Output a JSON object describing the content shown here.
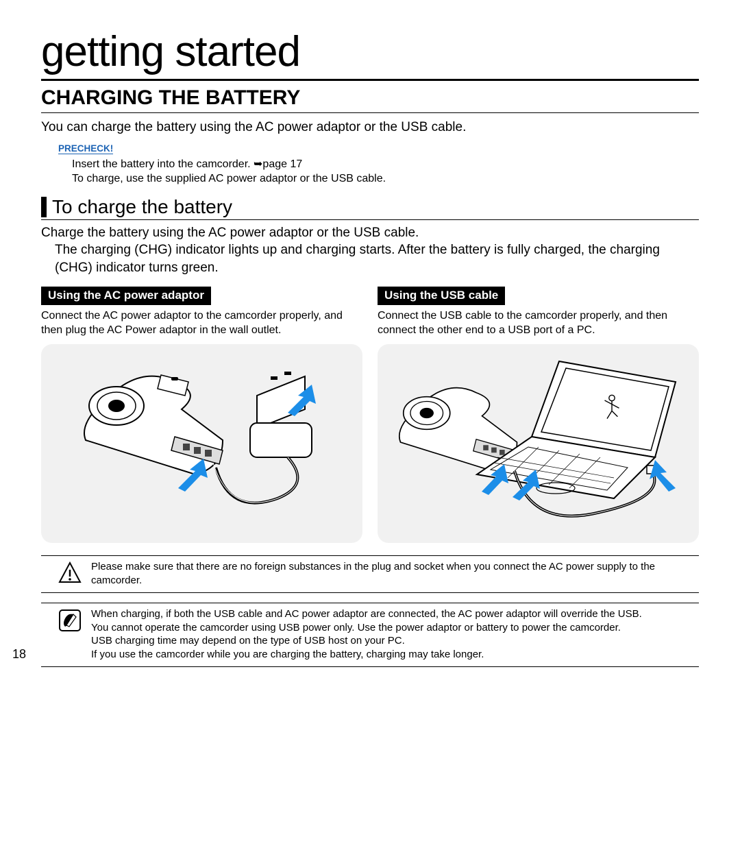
{
  "page_number": "18",
  "chapter_title": "getting started",
  "section_title": "CHARGING THE BATTERY",
  "intro": "You can charge the battery using the AC power adaptor or the USB cable.",
  "precheck_label": "PRECHECK!",
  "precheck_items": [
    "Insert the battery into the camcorder. ➥page 17",
    "To charge, use the supplied AC power adaptor or the USB cable."
  ],
  "subsection_title": "To charge the battery",
  "subsection_body_line1": "Charge the battery using the AC power adaptor or the USB cable.",
  "subsection_body_line2": "The charging (CHG) indicator lights up and charging starts. After the battery is fully charged, the charging (CHG) indicator turns green.",
  "methods": {
    "ac": {
      "label": "Using the AC power adaptor",
      "body": "Connect the AC power adaptor to the camcorder properly, and then plug the AC Power adaptor in the wall outlet."
    },
    "usb": {
      "label": "Using the USB cable",
      "body": "Connect the USB cable to the camcorder properly, and then connect the other end to a USB port of a PC."
    }
  },
  "warning_note": "Please make sure that there are no foreign substances in the plug and socket when you connect the AC power supply to the camcorder.",
  "info_note": "When charging, if both the USB cable and AC power adaptor are connected, the AC power adaptor will override the USB.\nYou cannot operate the camcorder using USB power only. Use the power adaptor or battery to power the camcorder.\nUSB charging time may depend on the type of USB host on your PC.\nIf you use the camcorder while you are charging the battery, charging may take longer.",
  "colors": {
    "accent_blue": "#1c63b4",
    "arrow_blue": "#1c8ee8",
    "diagram_bg": "#f1f1f1"
  }
}
